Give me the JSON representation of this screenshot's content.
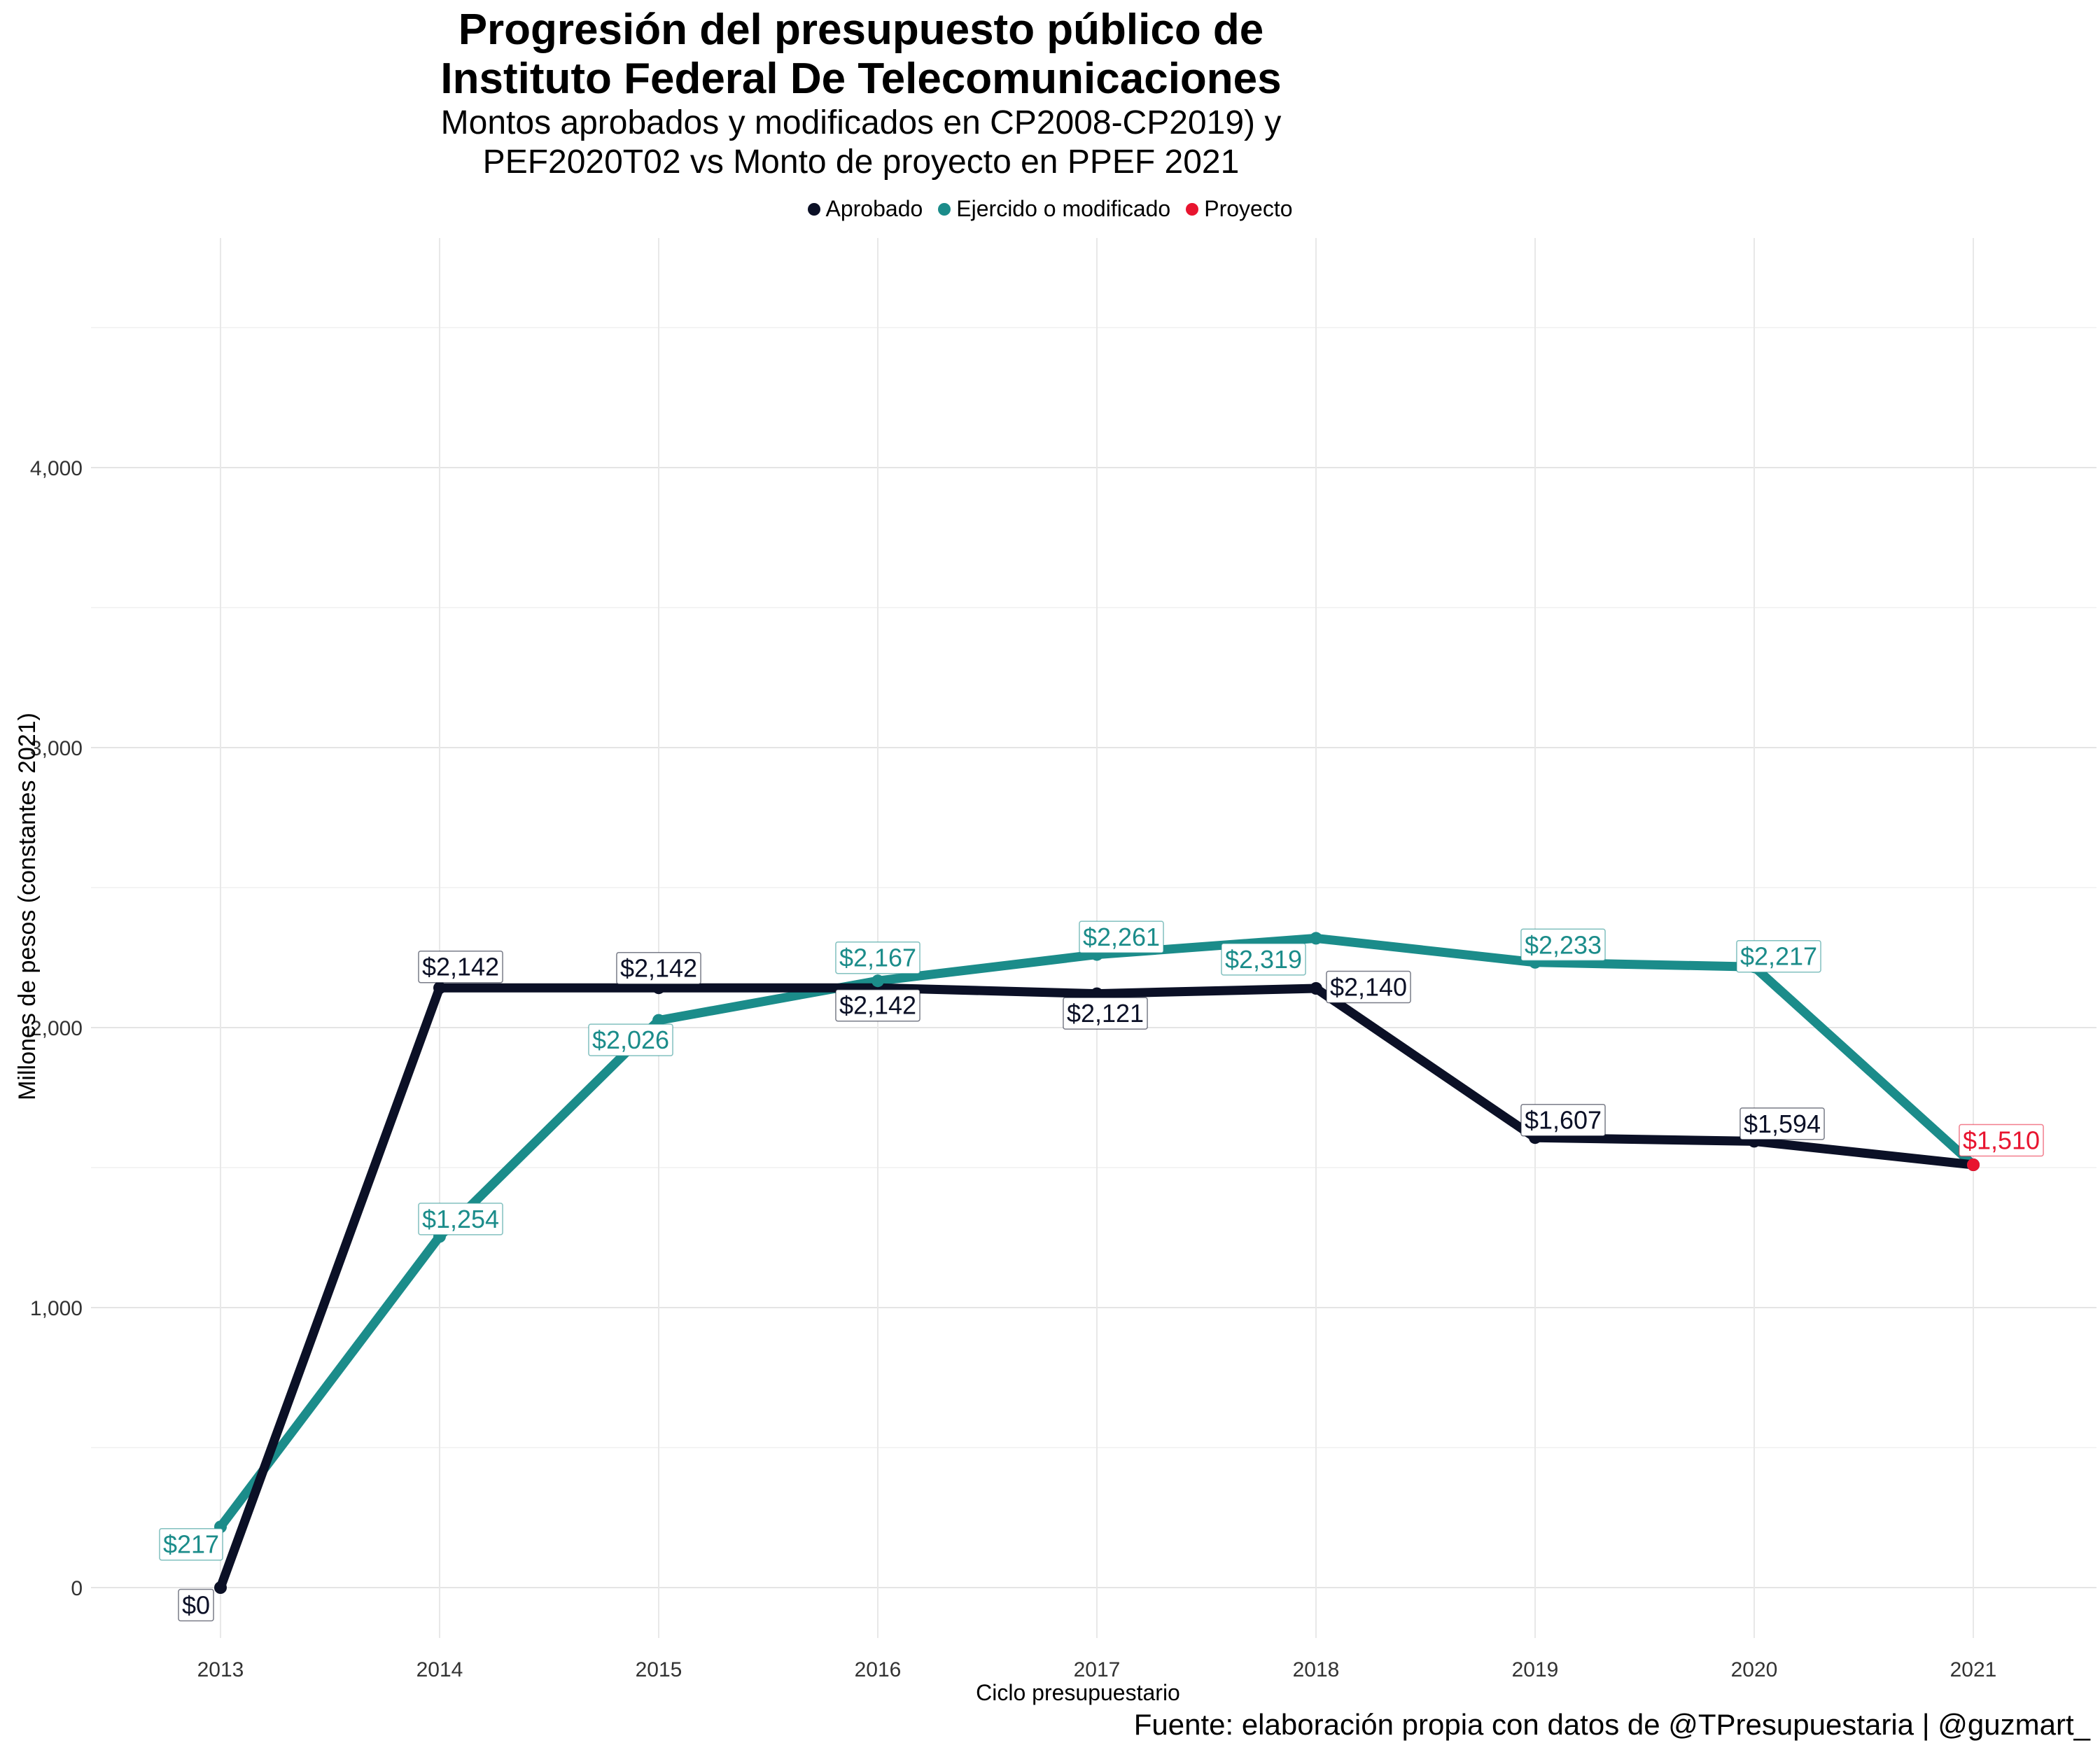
{
  "title": "Progresión del presupuesto público de Instituto Federal De Telecomunicaciones",
  "subtitle": "Montos aprobados y modificados en CP2008-CP2019) y PEF2020T02 vs Monto de proyecto en PPEF 2021",
  "legend": [
    {
      "label": "Aprobado",
      "color": "#0b1026"
    },
    {
      "label": "Ejercido o modificado",
      "color": "#1b8c8a"
    },
    {
      "label": "Proyecto",
      "color": "#e8142f"
    }
  ],
  "caption": "Fuente: elaboración propia con datos de @TPresupuestaria | @guzmart_",
  "chart_data": {
    "type": "line",
    "title": "Progresión del presupuesto público de Instituto Federal De Telecomunicaciones",
    "xlabel": "Ciclo presupuestario",
    "ylabel": "Millones de pesos (constantes 2021)",
    "x": [
      "2013",
      "2014",
      "2015",
      "2016",
      "2017",
      "2018",
      "2019",
      "2020",
      "2021"
    ],
    "ylim": [
      -150,
      4800
    ],
    "y_ticks": [
      0,
      1000,
      2000,
      3000,
      4000
    ],
    "y_tick_labels": [
      "0",
      "1,000",
      "2,000",
      "3,000",
      "4,000"
    ],
    "grid": true,
    "legend_position": "top",
    "series": [
      {
        "name": "Aprobado",
        "color": "#0b1026",
        "x": [
          "2013",
          "2014",
          "2015",
          "2016",
          "2017",
          "2018",
          "2019",
          "2020",
          "2021"
        ],
        "values": [
          0,
          2142,
          2142,
          2142,
          2121,
          2140,
          1607,
          1594,
          1510
        ],
        "labels": [
          "$0",
          "$2,142",
          "$2,142",
          "$2,142",
          "$2,121",
          "$2,140",
          "$1,607",
          "$1,594",
          null
        ]
      },
      {
        "name": "Ejercido o modificado",
        "color": "#1b8c8a",
        "x": [
          "2013",
          "2014",
          "2015",
          "2016",
          "2017",
          "2018",
          "2019",
          "2020",
          "2021"
        ],
        "values": [
          217,
          1254,
          2026,
          2167,
          2261,
          2319,
          2233,
          2217,
          1510
        ],
        "labels": [
          "$217",
          "$1,254",
          "$2,026",
          "$2,167",
          "$2,261",
          "$2,319",
          "$2,233",
          "$2,217",
          null
        ]
      },
      {
        "name": "Proyecto",
        "color": "#e8142f",
        "x": [
          "2021"
        ],
        "values": [
          1510
        ],
        "labels": [
          "$1,510"
        ]
      }
    ]
  }
}
